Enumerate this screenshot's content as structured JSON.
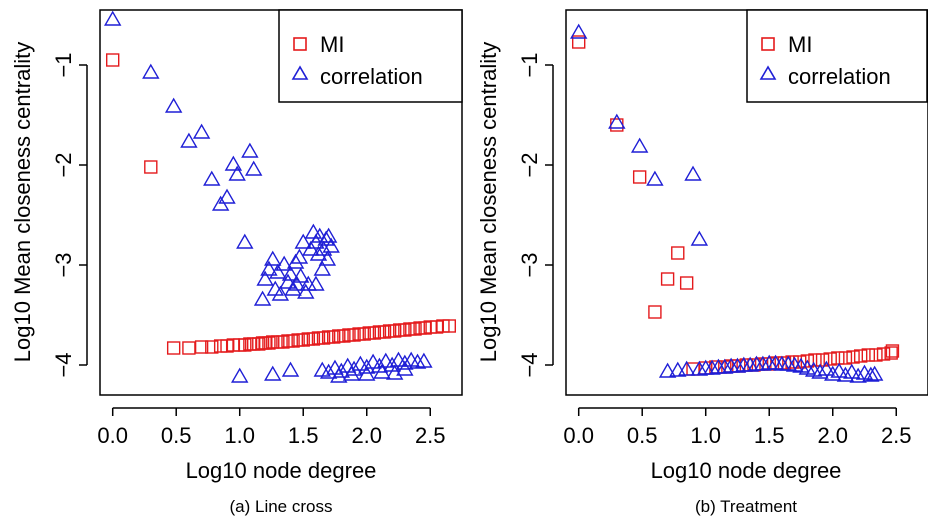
{
  "colors": {
    "mi": "#e41a1c",
    "correlation": "#1f1fd6",
    "axis": "#000000"
  },
  "chart_data": [
    {
      "type": "scatter",
      "caption": "(a) Line cross",
      "title": "",
      "xlabel": "Log10 node degree",
      "ylabel": "Log10 Mean closeness centrality",
      "xlim": [
        -0.1,
        2.75
      ],
      "ylim": [
        -4.3,
        -0.45
      ],
      "xticks": [
        0.0,
        0.5,
        1.0,
        1.5,
        2.0,
        2.5
      ],
      "xtick_labels": [
        "0.0",
        "0.5",
        "1.0",
        "1.5",
        "2.0",
        "2.5"
      ],
      "yticks": [
        -1,
        -2,
        -3,
        -4
      ],
      "ytick_labels": [
        "−1",
        "−2",
        "−3",
        "−4"
      ],
      "grid": false,
      "legend": {
        "placement": "top-right",
        "entries": [
          "MI",
          "correlation"
        ]
      },
      "series": [
        {
          "name": "MI",
          "marker": "square",
          "points": [
            [
              0.0,
              -0.95
            ],
            [
              0.3,
              -2.02
            ],
            [
              0.48,
              -3.83
            ],
            [
              0.6,
              -3.83
            ],
            [
              0.7,
              -3.82
            ],
            [
              0.78,
              -3.82
            ],
            [
              0.85,
              -3.81
            ],
            [
              0.9,
              -3.81
            ],
            [
              0.95,
              -3.8
            ],
            [
              1.0,
              -3.8
            ],
            [
              1.04,
              -3.8
            ],
            [
              1.08,
              -3.79
            ],
            [
              1.11,
              -3.79
            ],
            [
              1.15,
              -3.79
            ],
            [
              1.18,
              -3.78
            ],
            [
              1.2,
              -3.78
            ],
            [
              1.23,
              -3.78
            ],
            [
              1.26,
              -3.77
            ],
            [
              1.3,
              -3.77
            ],
            [
              1.34,
              -3.77
            ],
            [
              1.38,
              -3.76
            ],
            [
              1.42,
              -3.76
            ],
            [
              1.46,
              -3.75
            ],
            [
              1.5,
              -3.75
            ],
            [
              1.54,
              -3.74
            ],
            [
              1.58,
              -3.74
            ],
            [
              1.62,
              -3.73
            ],
            [
              1.66,
              -3.73
            ],
            [
              1.7,
              -3.72
            ],
            [
              1.74,
              -3.72
            ],
            [
              1.78,
              -3.71
            ],
            [
              1.82,
              -3.71
            ],
            [
              1.86,
              -3.7
            ],
            [
              1.9,
              -3.7
            ],
            [
              1.94,
              -3.69
            ],
            [
              1.98,
              -3.69
            ],
            [
              2.02,
              -3.68
            ],
            [
              2.06,
              -3.68
            ],
            [
              2.1,
              -3.67
            ],
            [
              2.14,
              -3.67
            ],
            [
              2.18,
              -3.66
            ],
            [
              2.22,
              -3.66
            ],
            [
              2.26,
              -3.65
            ],
            [
              2.3,
              -3.65
            ],
            [
              2.34,
              -3.64
            ],
            [
              2.38,
              -3.64
            ],
            [
              2.42,
              -3.63
            ],
            [
              2.46,
              -3.63
            ],
            [
              2.5,
              -3.62
            ],
            [
              2.55,
              -3.62
            ],
            [
              2.6,
              -3.61
            ],
            [
              2.65,
              -3.61
            ]
          ]
        },
        {
          "name": "correlation",
          "marker": "triangle",
          "points": [
            [
              0.0,
              -0.55
            ],
            [
              0.3,
              -1.08
            ],
            [
              0.48,
              -1.42
            ],
            [
              0.6,
              -1.77
            ],
            [
              0.7,
              -1.68
            ],
            [
              0.78,
              -2.15
            ],
            [
              0.85,
              -2.4
            ],
            [
              0.9,
              -2.33
            ],
            [
              0.95,
              -2.0
            ],
            [
              0.98,
              -2.1
            ],
            [
              1.04,
              -2.78
            ],
            [
              1.08,
              -1.87
            ],
            [
              1.11,
              -2.05
            ],
            [
              1.0,
              -4.12
            ],
            [
              1.26,
              -4.1
            ],
            [
              1.4,
              -4.06
            ],
            [
              1.18,
              -3.35
            ],
            [
              1.2,
              -3.15
            ],
            [
              1.23,
              -3.05
            ],
            [
              1.26,
              -2.95
            ],
            [
              1.28,
              -3.25
            ],
            [
              1.3,
              -3.08
            ],
            [
              1.32,
              -3.3
            ],
            [
              1.35,
              -3.0
            ],
            [
              1.38,
              -3.18
            ],
            [
              1.4,
              -3.1
            ],
            [
              1.42,
              -3.25
            ],
            [
              1.45,
              -3.2
            ],
            [
              1.47,
              -2.93
            ],
            [
              1.5,
              -2.78
            ],
            [
              1.52,
              -3.28
            ],
            [
              1.54,
              -3.2
            ],
            [
              1.56,
              -2.85
            ],
            [
              1.58,
              -2.68
            ],
            [
              1.6,
              -2.78
            ],
            [
              1.62,
              -2.9
            ],
            [
              1.63,
              -2.72
            ],
            [
              1.65,
              -3.05
            ],
            [
              1.66,
              -2.85
            ],
            [
              1.68,
              -2.75
            ],
            [
              1.69,
              -2.95
            ],
            [
              1.7,
              -2.72
            ],
            [
              1.72,
              -2.82
            ],
            [
              1.6,
              -3.2
            ],
            [
              1.48,
              -3.12
            ],
            [
              1.44,
              -2.98
            ],
            [
              1.65,
              -4.06
            ],
            [
              1.7,
              -4.08
            ],
            [
              1.75,
              -4.04
            ],
            [
              1.8,
              -4.07
            ],
            [
              1.85,
              -4.02
            ],
            [
              1.9,
              -4.05
            ],
            [
              1.95,
              -4.0
            ],
            [
              2.0,
              -4.03
            ],
            [
              2.05,
              -3.98
            ],
            [
              2.1,
              -4.02
            ],
            [
              2.15,
              -3.97
            ],
            [
              2.2,
              -4.01
            ],
            [
              2.25,
              -3.96
            ],
            [
              2.3,
              -3.99
            ],
            [
              2.35,
              -3.96
            ],
            [
              2.4,
              -3.98
            ],
            [
              2.45,
              -3.97
            ],
            [
              1.78,
              -4.12
            ],
            [
              1.88,
              -4.1
            ],
            [
              2.0,
              -4.1
            ],
            [
              2.12,
              -4.08
            ],
            [
              2.22,
              -4.09
            ],
            [
              2.3,
              -4.05
            ]
          ]
        }
      ]
    },
    {
      "type": "scatter",
      "caption": "(b) Treatment",
      "title": "",
      "xlabel": "Log10 node degree",
      "ylabel": "Log10 Mean closeness centrality",
      "xlim": [
        -0.1,
        2.75
      ],
      "ylim": [
        -4.3,
        -0.45
      ],
      "xticks": [
        0.0,
        0.5,
        1.0,
        1.5,
        2.0,
        2.5
      ],
      "xtick_labels": [
        "0.0",
        "0.5",
        "1.0",
        "1.5",
        "2.0",
        "2.5"
      ],
      "yticks": [
        -1,
        -2,
        -3,
        -4
      ],
      "ytick_labels": [
        "−1",
        "−2",
        "−3",
        "−4"
      ],
      "grid": false,
      "legend": {
        "placement": "top-right",
        "entries": [
          "MI",
          "correlation"
        ]
      },
      "series": [
        {
          "name": "MI",
          "marker": "square",
          "points": [
            [
              0.0,
              -0.77
            ],
            [
              0.3,
              -1.6
            ],
            [
              0.48,
              -2.12
            ],
            [
              0.78,
              -2.88
            ],
            [
              0.7,
              -3.14
            ],
            [
              0.85,
              -3.18
            ],
            [
              0.6,
              -3.47
            ],
            [
              0.9,
              -4.04
            ],
            [
              1.0,
              -4.03
            ],
            [
              1.08,
              -4.02
            ],
            [
              1.15,
              -4.02
            ],
            [
              1.2,
              -4.01
            ],
            [
              1.26,
              -4.01
            ],
            [
              1.32,
              -4.0
            ],
            [
              1.38,
              -4.0
            ],
            [
              1.44,
              -3.99
            ],
            [
              1.5,
              -3.99
            ],
            [
              1.56,
              -3.98
            ],
            [
              1.62,
              -3.98
            ],
            [
              1.68,
              -3.97
            ],
            [
              1.74,
              -3.97
            ],
            [
              1.8,
              -3.96
            ],
            [
              1.86,
              -3.95
            ],
            [
              1.92,
              -3.95
            ],
            [
              1.98,
              -3.94
            ],
            [
              2.04,
              -3.93
            ],
            [
              2.1,
              -3.93
            ],
            [
              2.16,
              -3.92
            ],
            [
              2.22,
              -3.91
            ],
            [
              2.28,
              -3.9
            ],
            [
              2.34,
              -3.9
            ],
            [
              2.4,
              -3.89
            ],
            [
              2.46,
              -3.88
            ],
            [
              2.47,
              -3.86
            ]
          ]
        },
        {
          "name": "correlation",
          "marker": "triangle",
          "points": [
            [
              0.0,
              -0.68
            ],
            [
              0.3,
              -1.58
            ],
            [
              0.48,
              -1.82
            ],
            [
              0.6,
              -2.15
            ],
            [
              0.9,
              -2.1
            ],
            [
              0.95,
              -2.75
            ],
            [
              0.7,
              -4.07
            ],
            [
              0.78,
              -4.06
            ],
            [
              0.85,
              -4.05
            ],
            [
              0.95,
              -4.05
            ],
            [
              1.0,
              -4.04
            ],
            [
              1.05,
              -4.04
            ],
            [
              1.1,
              -4.03
            ],
            [
              1.15,
              -4.03
            ],
            [
              1.2,
              -4.02
            ],
            [
              1.25,
              -4.02
            ],
            [
              1.3,
              -4.01
            ],
            [
              1.35,
              -4.01
            ],
            [
              1.4,
              -4.0
            ],
            [
              1.45,
              -4.0
            ],
            [
              1.5,
              -3.99
            ],
            [
              1.55,
              -3.99
            ],
            [
              1.6,
              -4.0
            ],
            [
              1.65,
              -4.0
            ],
            [
              1.7,
              -4.01
            ],
            [
              1.75,
              -4.02
            ],
            [
              1.8,
              -4.04
            ],
            [
              1.85,
              -4.06
            ],
            [
              1.9,
              -4.08
            ],
            [
              1.95,
              -4.05
            ],
            [
              2.0,
              -4.1
            ],
            [
              2.05,
              -4.07
            ],
            [
              2.1,
              -4.11
            ],
            [
              2.15,
              -4.08
            ],
            [
              2.2,
              -4.12
            ],
            [
              2.25,
              -4.09
            ],
            [
              2.3,
              -4.11
            ],
            [
              2.33,
              -4.1
            ]
          ]
        }
      ]
    }
  ]
}
